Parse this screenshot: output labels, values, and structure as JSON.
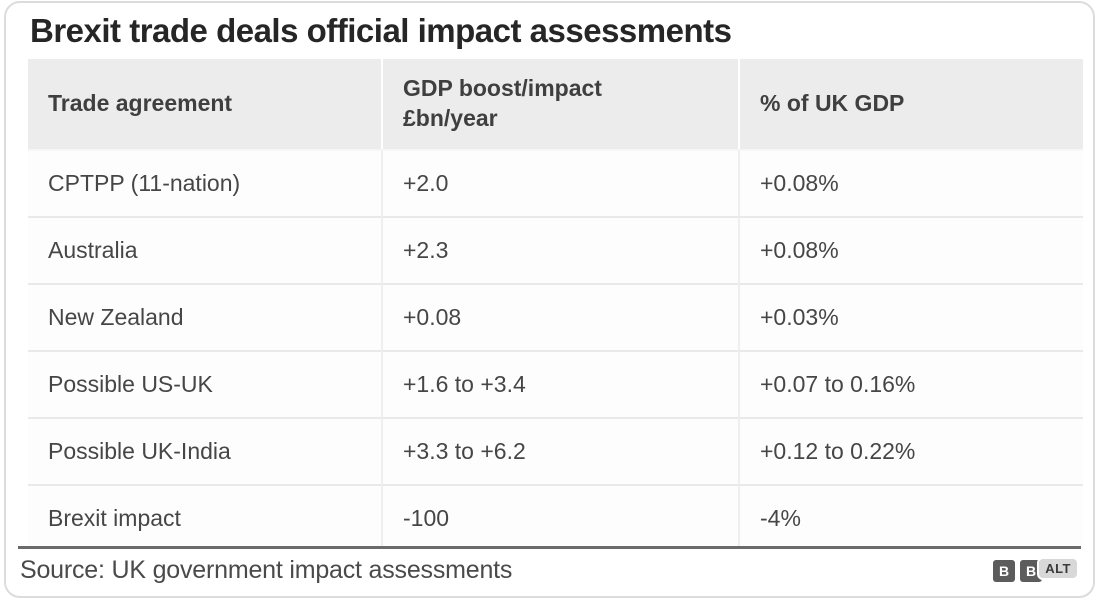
{
  "title": "Brexit trade deals official impact assessments",
  "chart_data": {
    "type": "table",
    "title": "Brexit trade deals official impact assessments",
    "columns": [
      "Trade agreement",
      "GDP boost/impact\n£bn/year",
      "% of UK GDP"
    ],
    "rows": [
      [
        "CPTPP (11-nation)",
        "+2.0",
        "+0.08%"
      ],
      [
        "Australia",
        "+2.3",
        "+0.08%"
      ],
      [
        "New Zealand",
        "+0.08",
        "+0.03%"
      ],
      [
        "Possible US-UK",
        "+1.6 to +3.4",
        "+0.07 to 0.16%"
      ],
      [
        "Possible UK-India",
        "+3.3 to +6.2",
        "+0.12 to 0.22%"
      ],
      [
        "Brexit impact",
        "-100",
        "-4%"
      ]
    ],
    "source": "Source: UK government impact assessments",
    "layout_hints": {
      "header_background": "#ececec",
      "grid": "light horizontal and vertical separators"
    }
  },
  "footer": {
    "source": "Source: UK government impact assessments",
    "logo_block_1": "B",
    "logo_block_2": "B",
    "alt_badge_label": "ALT"
  },
  "colors": {
    "title_text": "#262626",
    "header_bg": "#ececec",
    "body_text": "#464646",
    "row_bg": "#fdfdfd",
    "separator": "#e9e9e9",
    "footer_rule": "#6b6b6b",
    "logo_block_bg": "#5c5c5c",
    "alt_badge_bg": "#d8d8d8",
    "card_border": "#dcdcdc"
  }
}
